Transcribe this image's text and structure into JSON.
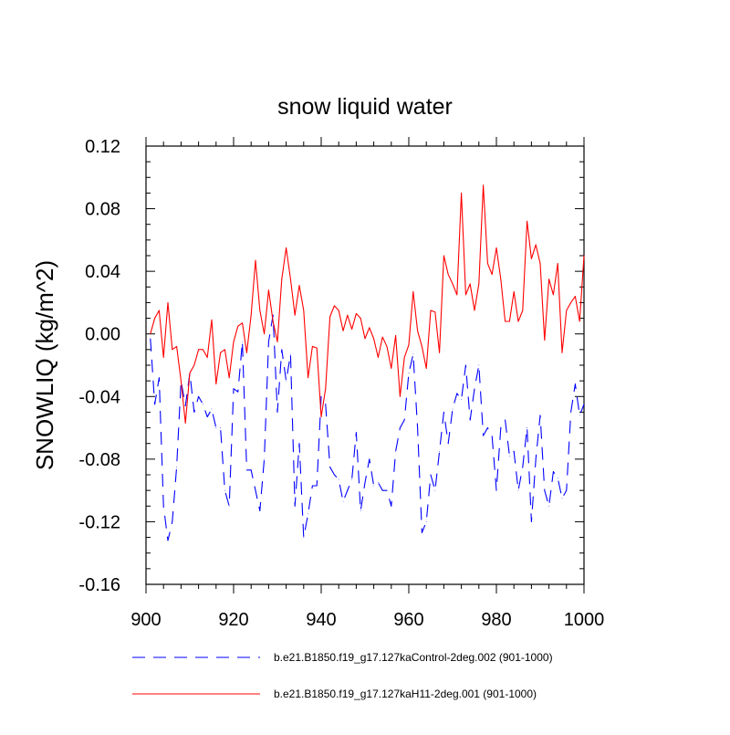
{
  "chart_data": {
    "type": "line",
    "title": "snow liquid water",
    "xlabel": "",
    "ylabel": "SNOWLIQ  (kg/m^2)",
    "xlim": [
      900,
      1000
    ],
    "ylim": [
      -0.16,
      0.12
    ],
    "xticks": [
      900,
      920,
      940,
      960,
      980,
      1000
    ],
    "xtick_labels": [
      "900",
      "920",
      "940",
      "960",
      "980",
      "1000"
    ],
    "yticks": [
      -0.16,
      -0.12,
      -0.08,
      -0.04,
      0.0,
      0.04,
      0.08,
      0.12
    ],
    "ytick_labels": [
      "-0.16",
      "-0.12",
      "-0.08",
      "-0.04",
      "0.00",
      "0.04",
      "0.08",
      "0.12"
    ],
    "grid": false,
    "legend_position": "bottom",
    "series": [
      {
        "name": "b.e21.B1850.f19_g17.127kaControl-2deg.002 (901-1000)",
        "color": "#0000ff",
        "style": "dashed",
        "x": [
          901,
          902,
          903,
          904,
          905,
          906,
          907,
          908,
          909,
          910,
          911,
          912,
          913,
          914,
          915,
          916,
          917,
          918,
          919,
          920,
          921,
          922,
          923,
          924,
          925,
          926,
          927,
          928,
          929,
          930,
          931,
          932,
          933,
          934,
          935,
          936,
          937,
          938,
          939,
          940,
          941,
          942,
          943,
          944,
          945,
          946,
          947,
          948,
          949,
          950,
          951,
          952,
          953,
          954,
          955,
          956,
          957,
          958,
          959,
          960,
          961,
          962,
          963,
          964,
          965,
          966,
          967,
          968,
          969,
          970,
          971,
          972,
          973,
          974,
          975,
          976,
          977,
          978,
          979,
          980,
          981,
          982,
          983,
          984,
          985,
          986,
          987,
          988,
          989,
          990,
          991,
          992,
          993,
          994,
          995,
          996,
          997,
          998,
          999,
          1000
        ],
        "values": [
          -0.003,
          -0.045,
          -0.028,
          -0.11,
          -0.132,
          -0.12,
          -0.085,
          -0.03,
          -0.046,
          -0.025,
          -0.05,
          -0.04,
          -0.045,
          -0.053,
          -0.048,
          -0.06,
          -0.06,
          -0.1,
          -0.11,
          -0.035,
          -0.037,
          -0.005,
          -0.087,
          -0.087,
          -0.1,
          -0.113,
          -0.08,
          -0.005,
          0.012,
          -0.05,
          -0.01,
          -0.03,
          -0.013,
          -0.11,
          -0.07,
          -0.13,
          -0.115,
          -0.097,
          -0.097,
          -0.04,
          -0.045,
          -0.085,
          -0.09,
          -0.093,
          -0.107,
          -0.1,
          -0.093,
          -0.063,
          -0.113,
          -0.095,
          -0.08,
          -0.097,
          -0.095,
          -0.1,
          -0.1,
          -0.11,
          -0.075,
          -0.06,
          -0.055,
          -0.025,
          -0.013,
          -0.06,
          -0.127,
          -0.12,
          -0.09,
          -0.1,
          -0.075,
          -0.05,
          -0.07,
          -0.048,
          -0.038,
          -0.042,
          -0.02,
          -0.055,
          -0.035,
          -0.02,
          -0.065,
          -0.06,
          -0.065,
          -0.1,
          -0.06,
          -0.055,
          -0.078,
          -0.075,
          -0.1,
          -0.085,
          -0.06,
          -0.12,
          -0.08,
          -0.052,
          -0.1,
          -0.11,
          -0.088,
          -0.092,
          -0.105,
          -0.1,
          -0.05,
          -0.032,
          -0.052,
          -0.045
        ]
      },
      {
        "name": "b.e21.B1850.f19_g17.127kaH11-2deg.001 (901-1000)",
        "color": "#ff0000",
        "style": "solid",
        "x": [
          901,
          902,
          903,
          904,
          905,
          906,
          907,
          908,
          909,
          910,
          911,
          912,
          913,
          914,
          915,
          916,
          917,
          918,
          919,
          920,
          921,
          922,
          923,
          924,
          925,
          926,
          927,
          928,
          929,
          930,
          931,
          932,
          933,
          934,
          935,
          936,
          937,
          938,
          939,
          940,
          941,
          942,
          943,
          944,
          945,
          946,
          947,
          948,
          949,
          950,
          951,
          952,
          953,
          954,
          955,
          956,
          957,
          958,
          959,
          960,
          961,
          962,
          963,
          964,
          965,
          966,
          967,
          968,
          969,
          970,
          971,
          972,
          973,
          974,
          975,
          976,
          977,
          978,
          979,
          980,
          981,
          982,
          983,
          984,
          985,
          986,
          987,
          988,
          989,
          990,
          991,
          992,
          993,
          994,
          995,
          996,
          997,
          998,
          999,
          1000
        ],
        "values": [
          0.0,
          0.01,
          0.015,
          -0.015,
          0.02,
          -0.01,
          -0.008,
          -0.03,
          -0.057,
          -0.025,
          -0.02,
          -0.01,
          -0.01,
          -0.015,
          0.009,
          -0.032,
          -0.012,
          -0.01,
          -0.028,
          -0.005,
          0.005,
          0.007,
          -0.012,
          0.012,
          0.047,
          0.015,
          0.0,
          0.028,
          0.008,
          -0.005,
          0.035,
          0.055,
          0.035,
          0.012,
          0.031,
          0.015,
          -0.028,
          -0.008,
          -0.009,
          -0.053,
          -0.035,
          0.011,
          0.018,
          0.015,
          0.002,
          0.012,
          0.003,
          0.013,
          0.01,
          -0.003,
          0.004,
          -0.003,
          -0.015,
          -0.002,
          -0.008,
          -0.022,
          -0.001,
          -0.04,
          -0.015,
          -0.007,
          0.027,
          0.002,
          -0.008,
          -0.022,
          0.015,
          0.014,
          -0.012,
          0.05,
          0.038,
          0.032,
          0.025,
          0.09,
          0.025,
          0.032,
          0.015,
          0.032,
          0.095,
          0.045,
          0.038,
          0.055,
          0.035,
          0.008,
          0.008,
          0.027,
          0.008,
          0.015,
          0.072,
          0.048,
          0.057,
          0.045,
          -0.004,
          0.035,
          0.025,
          0.045,
          -0.012,
          0.015,
          0.02,
          0.024,
          0.008,
          0.05
        ]
      }
    ]
  }
}
